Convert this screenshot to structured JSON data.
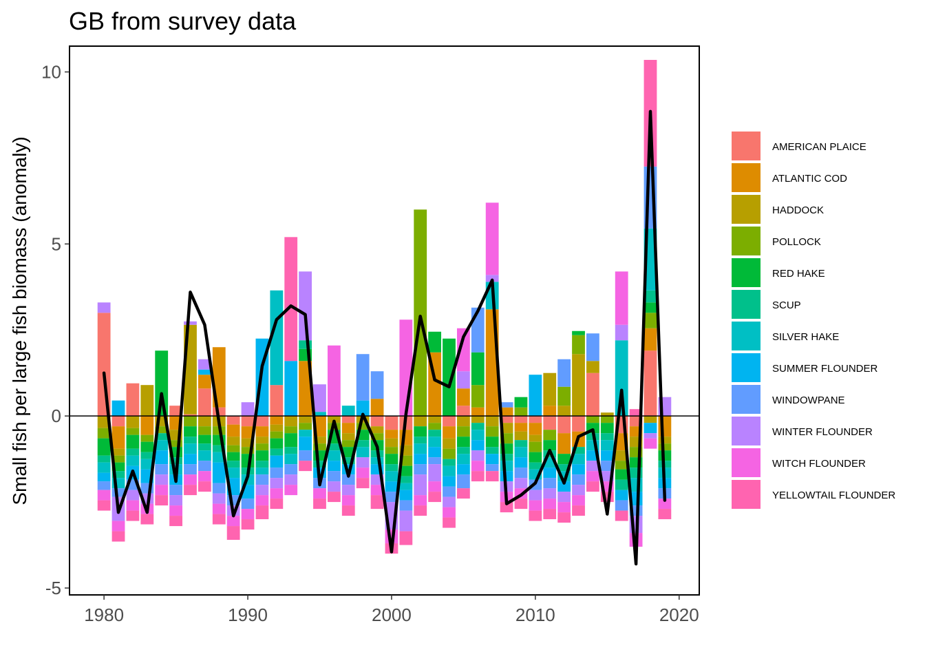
{
  "chart_data": {
    "type": "bar",
    "stacked": true,
    "title": "GB from survey data",
    "xlabel": "",
    "ylabel": "Small fish per large fish biomass (anomaly)",
    "xlim": [
      1977.6,
      2021.4
    ],
    "ylim": [
      -5.2,
      10.75
    ],
    "x_ticks": [
      1980,
      1990,
      2000,
      2010,
      2020
    ],
    "y_ticks": [
      -5,
      0,
      5,
      10
    ],
    "y_tick_labels": [
      "-5",
      "0",
      "5",
      "10"
    ],
    "grid": false,
    "reference_line": 0,
    "legend_position": "right",
    "years": [
      1980,
      1981,
      1982,
      1983,
      1984,
      1985,
      1986,
      1987,
      1988,
      1989,
      1990,
      1991,
      1992,
      1993,
      1994,
      1995,
      1996,
      1997,
      1998,
      1999,
      2000,
      2001,
      2002,
      2003,
      2004,
      2005,
      2006,
      2007,
      2008,
      2009,
      2010,
      2011,
      2012,
      2013,
      2014,
      2015,
      2016,
      2017,
      2018,
      2019
    ],
    "series": [
      {
        "name": "AMERICAN PLAICE",
        "color": "#F8766D",
        "values": [
          3.0,
          -0.3,
          0.95,
          0,
          0,
          0.3,
          0.05,
          0.8,
          0.25,
          -0.25,
          -0.3,
          -0.3,
          0.9,
          0,
          0,
          0,
          0,
          -0.2,
          0,
          -0.3,
          -0.4,
          -0.4,
          0,
          0,
          -0.3,
          0.3,
          0,
          0,
          -0.2,
          -0.2,
          -0.2,
          -0.4,
          -0.5,
          -0.45,
          1.25,
          0,
          -0.5,
          -0.3,
          1.9,
          0
        ]
      },
      {
        "name": "ATLANTIC COD",
        "color": "#DE8C00",
        "values": [
          0,
          -0.65,
          0,
          -0.55,
          0,
          -0.4,
          0,
          0.4,
          1.75,
          -0.35,
          -0.35,
          -0.3,
          -0.25,
          0,
          1.6,
          -0.6,
          0,
          -0.3,
          0,
          0.5,
          -0.25,
          -0.45,
          0,
          1.85,
          -0.35,
          0.5,
          0.25,
          3.1,
          0.25,
          -0.25,
          -0.35,
          0.3,
          -0.6,
          -0.45,
          0,
          0,
          -0.5,
          -0.3,
          0.65,
          -0.6
        ]
      },
      {
        "name": "HADDOCK",
        "color": "#B79F00",
        "values": [
          -0.35,
          -0.2,
          -0.35,
          0.9,
          -0.3,
          -0.3,
          2.6,
          -0.3,
          -0.3,
          -0.25,
          -0.25,
          -0.2,
          -0.2,
          -0.3,
          -0.2,
          -0.2,
          -0.2,
          -0.2,
          -0.2,
          -0.2,
          -0.25,
          -0.3,
          -0.3,
          -0.2,
          -0.3,
          -0.3,
          -0.2,
          -0.3,
          -0.3,
          -0.25,
          -0.2,
          0.95,
          0.3,
          1.8,
          0.35,
          0.1,
          -0.3,
          -0.3,
          -0.2,
          -0.2
        ]
      },
      {
        "name": "POLLOCK",
        "color": "#7CAE00",
        "values": [
          -0.3,
          -0.2,
          -0.2,
          -0.2,
          -0.2,
          -0.2,
          -0.3,
          -0.25,
          -0.25,
          -0.2,
          -0.2,
          -0.2,
          -0.2,
          -0.2,
          -0.2,
          -0.2,
          -0.2,
          -0.2,
          -0.2,
          -0.2,
          -0.2,
          -0.3,
          6.0,
          -0.2,
          -0.3,
          -0.3,
          0.65,
          -0.3,
          -0.3,
          0.25,
          -0.3,
          -0.3,
          0.55,
          0.55,
          -0.2,
          -0.2,
          -0.25,
          -0.3,
          0.45,
          -0.2
        ]
      },
      {
        "name": "RED HAKE",
        "color": "#00BA38",
        "values": [
          -0.5,
          -0.25,
          -0.4,
          -0.3,
          1.9,
          -0.3,
          -0.3,
          -0.25,
          -0.3,
          -0.25,
          -0.4,
          -0.3,
          -0.3,
          -0.4,
          0.35,
          -0.3,
          -0.4,
          -0.3,
          -0.3,
          -0.3,
          -0.3,
          -0.3,
          -0.3,
          0.6,
          2.25,
          -0.3,
          0.95,
          -0.3,
          -0.3,
          0.3,
          -0.3,
          -0.3,
          -0.3,
          0.12,
          -0.3,
          -0.3,
          -0.3,
          -0.3,
          0.3,
          -0.3
        ]
      },
      {
        "name": "SCUP",
        "color": "#00C08B",
        "values": [
          -0.2,
          -0.2,
          -0.2,
          -0.2,
          -0.2,
          -0.2,
          -0.2,
          -0.2,
          -0.2,
          -0.2,
          -0.2,
          -0.2,
          -0.2,
          -0.2,
          0.25,
          -0.2,
          -0.2,
          -0.2,
          -0.2,
          -0.2,
          -0.2,
          -0.2,
          -0.2,
          -0.2,
          -0.2,
          -0.2,
          -0.2,
          -0.2,
          -0.2,
          -0.2,
          -0.2,
          -0.2,
          -0.2,
          -0.2,
          -0.2,
          -0.2,
          -0.3,
          -0.3,
          0.35,
          -0.2
        ]
      },
      {
        "name": "SILVER HAKE",
        "color": "#00BFC4",
        "values": [
          -0.3,
          -0.3,
          -0.3,
          -0.3,
          -0.3,
          -0.3,
          -0.3,
          -0.3,
          -0.3,
          -0.3,
          -0.3,
          -0.2,
          2.75,
          -0.3,
          -0.2,
          0.12,
          -0.3,
          0.3,
          -0.3,
          -0.2,
          -0.3,
          -0.2,
          -0.3,
          -0.3,
          -0.3,
          -0.3,
          -0.3,
          0.8,
          -0.3,
          -0.3,
          -0.3,
          -0.3,
          -0.3,
          -0.3,
          -0.3,
          -0.3,
          2.2,
          -0.4,
          1.8,
          -0.3
        ]
      },
      {
        "name": "SUMMER FLOUNDER",
        "color": "#00B4F0",
        "values": [
          -0.25,
          0.45,
          -0.4,
          -0.4,
          -0.4,
          -0.3,
          -0.3,
          0.15,
          -0.6,
          -0.5,
          -0.4,
          2.25,
          -0.35,
          1.6,
          -0.4,
          -0.3,
          -0.3,
          -0.3,
          0.45,
          -0.3,
          -0.3,
          -0.3,
          -0.3,
          -0.3,
          -0.3,
          -0.3,
          -0.3,
          -0.3,
          -0.3,
          -0.3,
          1.2,
          -0.3,
          -0.3,
          -0.3,
          -0.3,
          -0.3,
          -0.3,
          -0.4,
          -0.3,
          -0.3
        ]
      },
      {
        "name": "WINDOWPANE",
        "color": "#619CFF",
        "values": [
          -0.25,
          -0.25,
          -0.3,
          -0.3,
          -0.3,
          -0.3,
          -0.3,
          -0.3,
          -0.3,
          -0.3,
          -0.3,
          -0.3,
          -0.3,
          -0.3,
          -0.3,
          -0.3,
          -0.3,
          -0.3,
          1.35,
          0.8,
          -0.3,
          -0.3,
          -0.3,
          -0.2,
          -0.3,
          -0.4,
          1.3,
          -0.2,
          0.15,
          -0.3,
          -0.3,
          -0.3,
          0.8,
          -0.3,
          0.8,
          -0.3,
          -0.3,
          -0.3,
          1.8,
          -0.3
        ]
      },
      {
        "name": "WINTER FLOUNDER",
        "color": "#B983FF",
        "values": [
          0.3,
          -0.7,
          -0.3,
          -0.3,
          -0.3,
          -0.3,
          0.1,
          0.3,
          -0.3,
          -0.3,
          0.4,
          -0.3,
          -0.3,
          -0.3,
          2.0,
          0.8,
          -0.3,
          -0.3,
          -0.3,
          -0.3,
          -0.8,
          -0.6,
          -0.6,
          -0.5,
          -0.3,
          0.5,
          -0.3,
          0.2,
          -0.3,
          -0.3,
          -0.3,
          -0.3,
          -0.3,
          -0.3,
          -0.3,
          -0.3,
          0.45,
          -0.5,
          -0.15,
          0.55
        ]
      },
      {
        "name": "WITCH FLOUNDER",
        "color": "#F564E3",
        "values": [
          -0.3,
          -0.3,
          -0.3,
          -0.3,
          -0.3,
          -0.3,
          -0.3,
          -0.3,
          -0.3,
          -0.3,
          -0.3,
          -0.3,
          -0.3,
          -0.3,
          0,
          -0.3,
          2.05,
          -0.3,
          -0.3,
          -0.3,
          -0.4,
          2.8,
          -0.3,
          -0.3,
          -0.3,
          1.25,
          -0.3,
          2.1,
          -0.3,
          -0.3,
          -0.3,
          -0.3,
          -0.3,
          -0.3,
          -0.3,
          -0.3,
          1.55,
          -0.4,
          -0.3,
          -0.3
        ]
      },
      {
        "name": "YELLOWTAIL FLOUNDER",
        "color": "#FF64B0",
        "values": [
          -0.3,
          -0.3,
          -0.3,
          -0.3,
          -0.3,
          -0.3,
          -0.3,
          -0.3,
          -0.3,
          -0.4,
          -0.3,
          -0.4,
          -0.3,
          3.6,
          -0.3,
          -0.3,
          -0.3,
          -0.3,
          -0.3,
          -0.4,
          -0.3,
          -0.4,
          -0.3,
          -0.3,
          -0.3,
          -0.3,
          -0.3,
          -0.3,
          -0.3,
          -0.3,
          -0.3,
          -0.3,
          -0.3,
          -0.3,
          -0.3,
          -0.3,
          -0.3,
          0.2,
          3.1,
          -0.3
        ]
      }
    ],
    "line": {
      "color": "#000000",
      "values": [
        1.25,
        -2.8,
        -1.6,
        -2.8,
        0.65,
        -1.9,
        3.6,
        2.65,
        -0.2,
        -2.9,
        -1.75,
        1.45,
        2.8,
        3.2,
        2.95,
        -2.0,
        -0.15,
        -1.75,
        0.05,
        -0.9,
        -3.95,
        0.05,
        2.9,
        1.05,
        0.85,
        2.3,
        3.05,
        3.95,
        -2.55,
        -2.3,
        -1.95,
        -1.0,
        -1.95,
        -0.6,
        -0.4,
        -2.85,
        0.75,
        -4.3,
        8.85,
        -2.45
      ]
    }
  }
}
